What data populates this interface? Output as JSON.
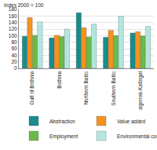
{
  "chart_data": {
    "type": "bar",
    "ylabel": "Index 2000 = 100",
    "categories": [
      "Gulf of Bothnia",
      "Bothnia",
      "Northern Baltic",
      "Southern Baltic",
      "Skagerrak-Kattegat"
    ],
    "series": [
      {
        "name": "Abstraction",
        "color": "#1a8c8c",
        "values": [
          98,
          93,
          170,
          95,
          108
        ]
      },
      {
        "name": "Value added",
        "color": "#f5921e",
        "values": [
          155,
          101,
          124,
          116,
          112
        ]
      },
      {
        "name": "Employment",
        "color": "#6cb94a",
        "values": [
          101,
          97,
          96,
          100,
          99
        ]
      },
      {
        "name": "Environmental costs",
        "color": "#b3e6e0",
        "values": [
          142,
          120,
          135,
          159,
          128
        ]
      }
    ],
    "ylim": [
      0,
      180
    ],
    "yticks": [
      0,
      20,
      40,
      60,
      80,
      100,
      120,
      140,
      160,
      180
    ],
    "grid": true,
    "legend": "bottom"
  }
}
